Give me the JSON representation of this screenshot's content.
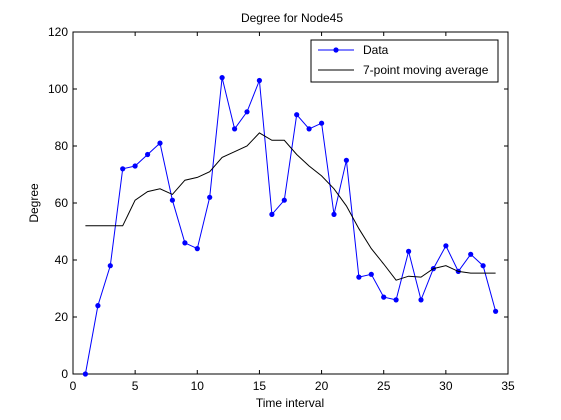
{
  "chart_data": {
    "type": "line",
    "title": "Degree for Node45",
    "xlabel": "Time interval",
    "ylabel": "Degree",
    "xlim": [
      0,
      35
    ],
    "ylim": [
      0,
      120
    ],
    "xticks": [
      0,
      5,
      10,
      15,
      20,
      25,
      30,
      35
    ],
    "yticks": [
      0,
      20,
      40,
      60,
      80,
      100,
      120
    ],
    "grid": false,
    "legend_position": "top-right",
    "series": [
      {
        "name": "Data",
        "color": "#0000ff",
        "marker": "dot",
        "x": [
          1,
          2,
          3,
          4,
          5,
          6,
          7,
          8,
          9,
          10,
          11,
          12,
          13,
          14,
          15,
          16,
          17,
          18,
          19,
          20,
          21,
          22,
          23,
          24,
          25,
          26,
          27,
          28,
          29,
          30,
          31,
          32,
          33,
          34
        ],
        "y": [
          0,
          24,
          38,
          72,
          73,
          77,
          81,
          61,
          46,
          44,
          62,
          104,
          86,
          92,
          103,
          56,
          61,
          91,
          86,
          88,
          56,
          75,
          34,
          35,
          27,
          26,
          43,
          26,
          37,
          45,
          36,
          42,
          38,
          22
        ]
      },
      {
        "name": "7-point moving average",
        "color": "#000000",
        "marker": "none",
        "x": [
          1,
          2,
          3,
          4,
          5,
          6,
          7,
          8,
          9,
          10,
          11,
          12,
          13,
          14,
          15,
          16,
          17,
          18,
          19,
          20,
          21,
          22,
          23,
          24,
          25,
          26,
          27,
          28,
          29,
          30,
          31,
          32,
          33,
          34
        ],
        "y": [
          52,
          52,
          52,
          52,
          61,
          64,
          65,
          63,
          68,
          69,
          71,
          76,
          78,
          80,
          84.6,
          82,
          82,
          77,
          73,
          69.5,
          65,
          59,
          51,
          44,
          38.6,
          32.9,
          34.3,
          34,
          37,
          38,
          36,
          35.4,
          35.4,
          35.4
        ]
      }
    ]
  }
}
